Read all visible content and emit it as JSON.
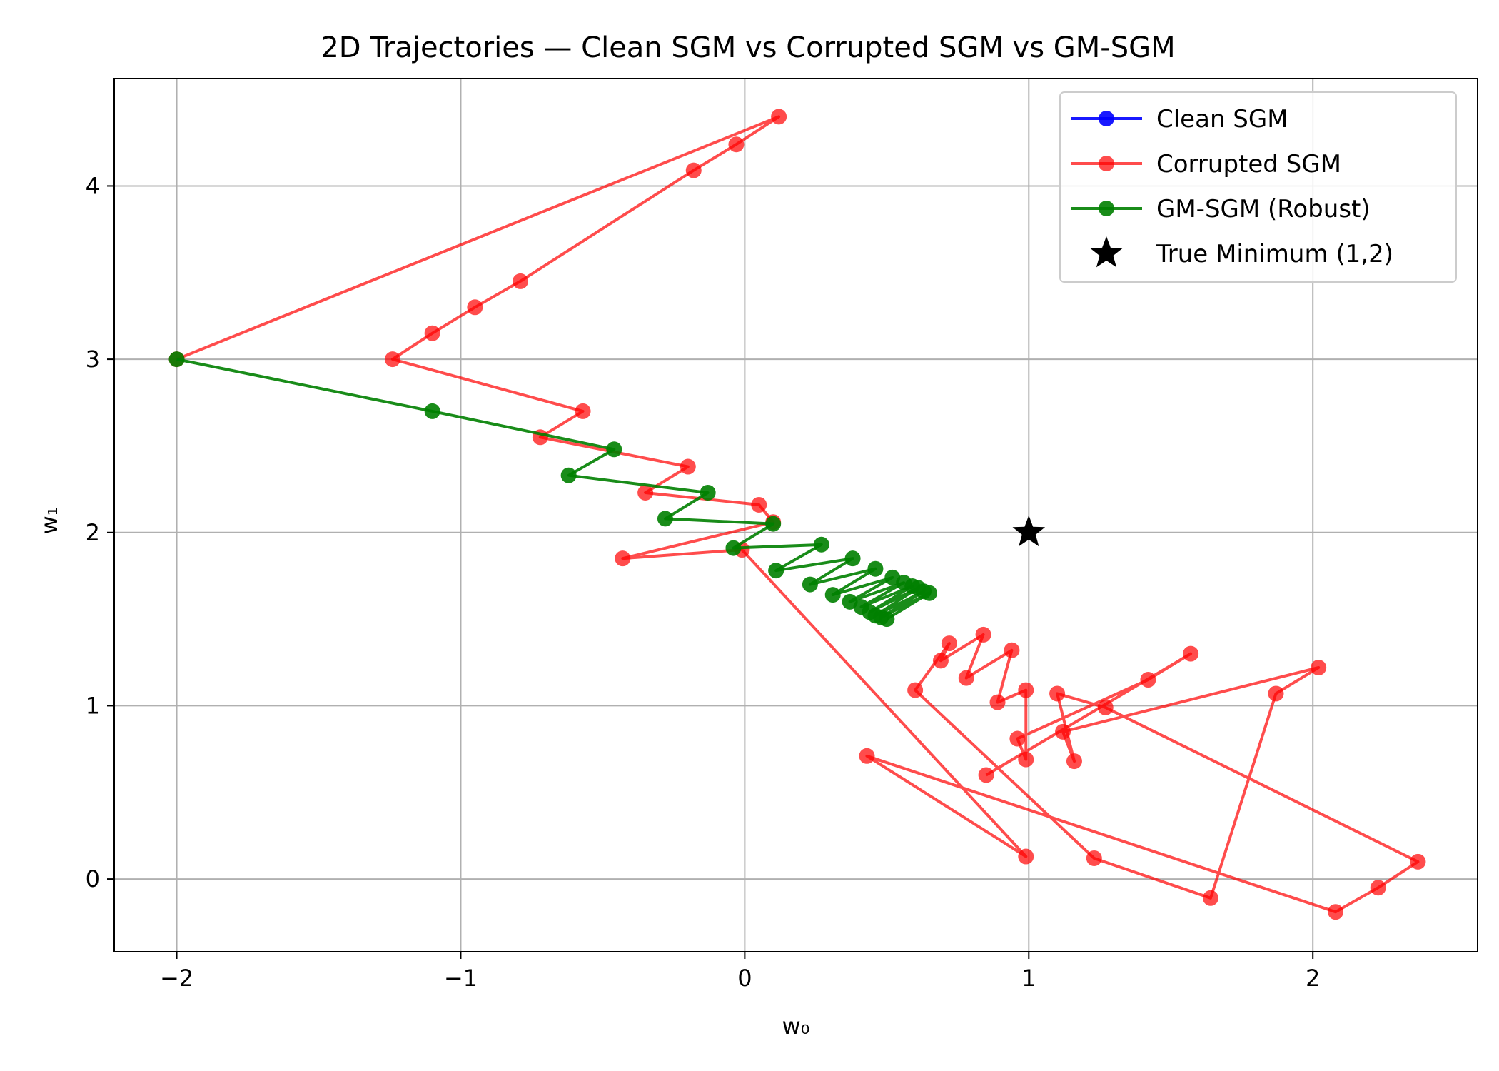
{
  "chart_data": {
    "type": "line",
    "title": "2D Trajectories — Clean SGM vs Corrupted SGM vs GM-SGM",
    "xlabel": "w₀",
    "ylabel": "w₁",
    "xlim": [
      -2.22,
      2.58
    ],
    "ylim": [
      -0.42,
      4.62
    ],
    "xticks": [
      -2,
      -1,
      0,
      1,
      2
    ],
    "yticks": [
      0,
      1,
      2,
      3,
      4
    ],
    "grid": true,
    "legend_position": "top-right",
    "series": [
      {
        "name": "Clean SGM",
        "color": "#0000ff",
        "points": []
      },
      {
        "name": "Corrupted SGM",
        "color": "#ff0000",
        "points": [
          [
            -2.0,
            3.0
          ],
          [
            0.12,
            4.4
          ],
          [
            -0.03,
            4.24
          ],
          [
            -0.18,
            4.09
          ],
          [
            -0.79,
            3.45
          ],
          [
            -0.95,
            3.3
          ],
          [
            -1.1,
            3.15
          ],
          [
            -1.24,
            3.0
          ],
          [
            -0.57,
            2.7
          ],
          [
            -0.72,
            2.55
          ],
          [
            -0.2,
            2.38
          ],
          [
            -0.35,
            2.23
          ],
          [
            0.05,
            2.16
          ],
          [
            0.1,
            2.06
          ],
          [
            -0.43,
            1.85
          ],
          [
            -0.01,
            1.9
          ],
          [
            0.99,
            0.13
          ],
          [
            0.43,
            0.71
          ],
          [
            2.08,
            -0.19
          ],
          [
            2.23,
            -0.05
          ],
          [
            2.37,
            0.1
          ],
          [
            1.27,
            0.99
          ],
          [
            1.1,
            1.07
          ],
          [
            1.16,
            0.68
          ],
          [
            1.12,
            0.85
          ],
          [
            2.02,
            1.22
          ],
          [
            1.87,
            1.07
          ],
          [
            1.64,
            -0.11
          ],
          [
            1.23,
            0.12
          ],
          [
            0.6,
            1.09
          ],
          [
            0.72,
            1.36
          ],
          [
            0.69,
            1.26
          ],
          [
            0.84,
            1.41
          ],
          [
            0.78,
            1.16
          ],
          [
            0.94,
            1.32
          ],
          [
            0.89,
            1.02
          ],
          [
            0.99,
            1.09
          ],
          [
            0.99,
            0.69
          ],
          [
            0.96,
            0.81
          ],
          [
            1.42,
            1.15
          ],
          [
            1.57,
            1.3
          ],
          [
            0.85,
            0.6
          ]
        ]
      },
      {
        "name": "GM-SGM (Robust)",
        "color": "#008000",
        "points": [
          [
            -2.0,
            3.0
          ],
          [
            -1.1,
            2.7
          ],
          [
            -0.46,
            2.48
          ],
          [
            -0.62,
            2.33
          ],
          [
            -0.13,
            2.23
          ],
          [
            -0.28,
            2.08
          ],
          [
            0.1,
            2.05
          ],
          [
            -0.04,
            1.91
          ],
          [
            0.27,
            1.93
          ],
          [
            0.11,
            1.78
          ],
          [
            0.38,
            1.85
          ],
          [
            0.23,
            1.7
          ],
          [
            0.46,
            1.79
          ],
          [
            0.31,
            1.64
          ],
          [
            0.52,
            1.74
          ],
          [
            0.37,
            1.6
          ],
          [
            0.56,
            1.71
          ],
          [
            0.41,
            1.57
          ],
          [
            0.59,
            1.69
          ],
          [
            0.44,
            1.54
          ],
          [
            0.61,
            1.68
          ],
          [
            0.46,
            1.52
          ],
          [
            0.63,
            1.66
          ],
          [
            0.48,
            1.51
          ],
          [
            0.65,
            1.65
          ],
          [
            0.5,
            1.5
          ]
        ]
      },
      {
        "name": "True Minimum (1,2)",
        "color": "#000000",
        "marker": "star",
        "points": [
          [
            1.0,
            2.0
          ]
        ]
      }
    ]
  }
}
